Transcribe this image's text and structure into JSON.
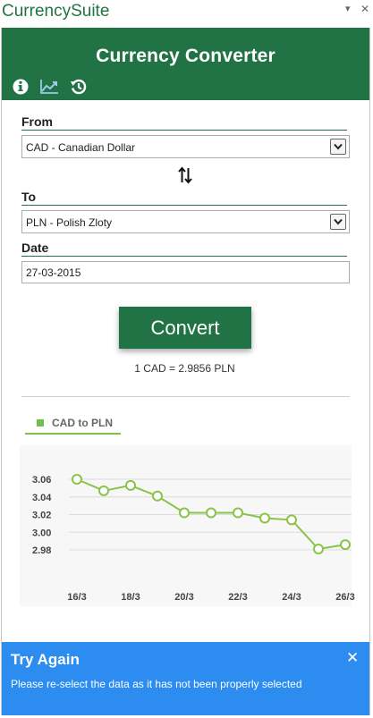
{
  "pane": {
    "app_name": "CurrencySuite",
    "menu_glyph": "▾",
    "close_glyph": "✕"
  },
  "banner": {
    "title": "Currency Converter",
    "toolbar": [
      {
        "name": "info-icon",
        "active": true
      },
      {
        "name": "trend-chart-icon",
        "active": true
      },
      {
        "name": "history-icon",
        "active": true
      }
    ]
  },
  "form": {
    "from_label": "From",
    "from_value": "CAD - Canadian Dollar",
    "swap_icon": "swap-arrows-icon",
    "to_label": "To",
    "to_value": "PLN - Polish Zloty",
    "date_label": "Date",
    "date_value": "27-03-2015"
  },
  "convert": {
    "button_label": "Convert",
    "result": "1 CAD = 2.9856 PLN"
  },
  "chart_data": {
    "type": "line",
    "legend": [
      "CAD to PLN"
    ],
    "series": [
      {
        "name": "CAD to PLN",
        "x": [
          "16/3",
          "17/3",
          "18/3",
          "19/3",
          "20/3",
          "21/3",
          "22/3",
          "23/3",
          "24/3",
          "25/3",
          "26/3"
        ],
        "values": [
          3.06,
          3.047,
          3.053,
          3.041,
          3.022,
          3.022,
          3.022,
          3.016,
          3.014,
          2.981,
          2.986
        ]
      }
    ],
    "x_tick_labels": [
      "16/3",
      "18/3",
      "20/3",
      "22/3",
      "24/3",
      "26/3"
    ],
    "y_ticks": [
      2.98,
      3.0,
      3.02,
      3.04,
      3.06
    ],
    "ylim": [
      2.975,
      3.07
    ],
    "grid": true,
    "line_color": "#8bc34a",
    "legend_position": "top-left"
  },
  "notification": {
    "title": "Try Again",
    "message": "Please re-select the data as it has not been properly selected",
    "close_glyph": "✕",
    "color": "#2d8cf0"
  },
  "colors": {
    "brand": "#217346",
    "accent_line": "#80c04a"
  }
}
